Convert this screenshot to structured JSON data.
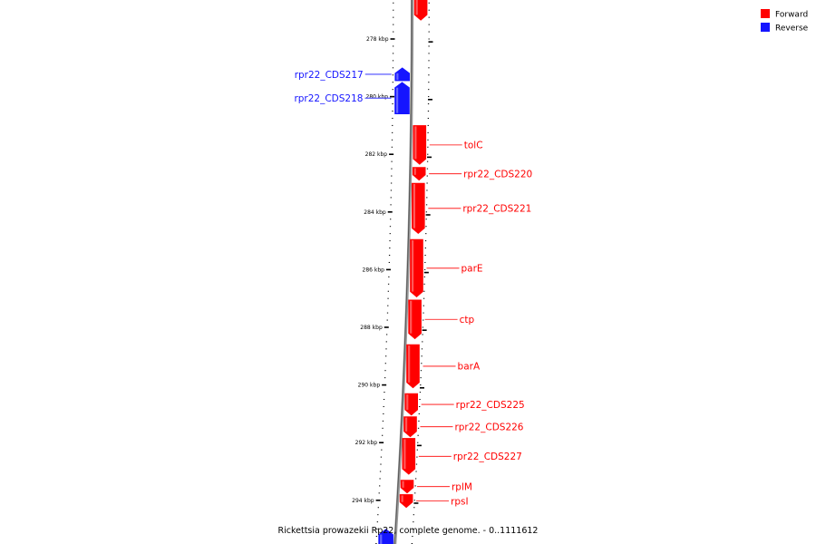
{
  "caption": "Rickettsia prowazekii Rp22, complete genome. - 0..1111612",
  "colors": {
    "forward": "#ff0000",
    "reverse": "#1515ff",
    "backbone": "#808080"
  },
  "legend": [
    {
      "label": "Forward",
      "color": "#ff0000"
    },
    {
      "label": "Reverse",
      "color": "#1515ff"
    }
  ],
  "ticks": [
    {
      "kbp": 278,
      "label": "278 kbp"
    },
    {
      "kbp": 280,
      "label": "280 kbp"
    },
    {
      "kbp": 282,
      "label": "282 kbp"
    },
    {
      "kbp": 284,
      "label": "284 kbp"
    },
    {
      "kbp": 286,
      "label": "286 kbp"
    },
    {
      "kbp": 288,
      "label": "288 kbp"
    },
    {
      "kbp": 290,
      "label": "290 kbp"
    },
    {
      "kbp": 292,
      "label": "292 kbp"
    },
    {
      "kbp": 294,
      "label": "294 kbp"
    }
  ],
  "features": [
    {
      "name": "",
      "strand": "forward",
      "start": 276.55,
      "end": 277.35
    },
    {
      "name": "rpr22_CDS217",
      "strand": "reverse",
      "start": 279.0,
      "end": 279.45
    },
    {
      "name": "rpr22_CDS218",
      "strand": "reverse",
      "start": 279.5,
      "end": 280.6
    },
    {
      "name": "tolC",
      "strand": "forward",
      "start": 281.0,
      "end": 282.35
    },
    {
      "name": "rpr22_CDS220",
      "strand": "forward",
      "start": 282.45,
      "end": 282.9
    },
    {
      "name": "rpr22_CDS221",
      "strand": "forward",
      "start": 283.0,
      "end": 284.75
    },
    {
      "name": "parE",
      "strand": "forward",
      "start": 284.95,
      "end": 286.95
    },
    {
      "name": "ctp",
      "strand": "forward",
      "start": 287.05,
      "end": 288.4
    },
    {
      "name": "barA",
      "strand": "forward",
      "start": 288.6,
      "end": 290.1
    },
    {
      "name": "rpr22_CDS225",
      "strand": "forward",
      "start": 290.3,
      "end": 291.05
    },
    {
      "name": "rpr22_CDS226",
      "strand": "forward",
      "start": 291.1,
      "end": 291.8
    },
    {
      "name": "rpr22_CDS227",
      "strand": "forward",
      "start": 291.85,
      "end": 293.1
    },
    {
      "name": "rplM",
      "strand": "forward",
      "start": 293.3,
      "end": 293.75
    },
    {
      "name": "rpsI",
      "strand": "forward",
      "start": 293.8,
      "end": 294.25
    },
    {
      "name": "",
      "strand": "reverse",
      "start": 295.0,
      "end": 295.6
    }
  ]
}
